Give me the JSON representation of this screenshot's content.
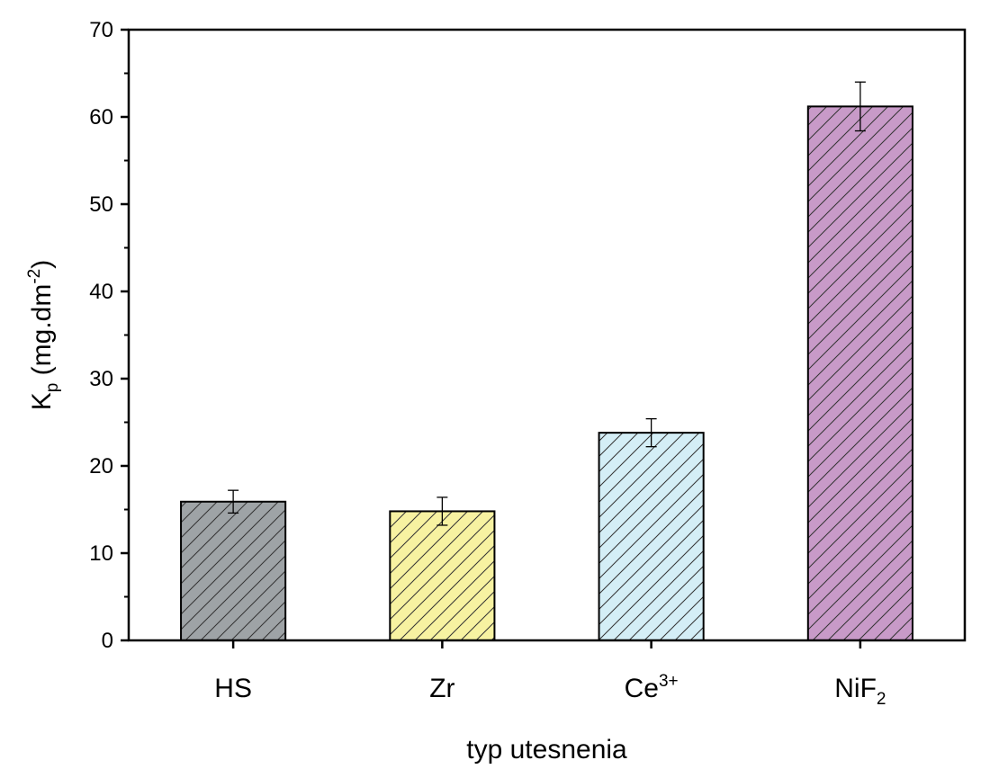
{
  "chart_data": {
    "type": "bar",
    "categories": [
      {
        "base": "HS",
        "sup": "",
        "sub": ""
      },
      {
        "base": "Zr",
        "sup": "",
        "sub": ""
      },
      {
        "base": "Ce",
        "sup": "3+",
        "sub": ""
      },
      {
        "base": "NiF",
        "sup": "",
        "sub": "2"
      }
    ],
    "values": [
      15.9,
      14.8,
      23.8,
      61.2
    ],
    "errors": [
      1.3,
      1.6,
      1.6,
      2.8
    ],
    "colors": [
      "#9ea3a6",
      "#f7f2a1",
      "#d4eef6",
      "#c89ac8"
    ],
    "hatch": "diagonal",
    "xlabel": "typ utesnenia",
    "ylabel": {
      "base": "K",
      "sub": "p",
      "unit_open": " (mg.dm",
      "unit_sup": "-2",
      "unit_close": ")"
    },
    "ylim": [
      0,
      70
    ],
    "yticks": [
      0,
      10,
      20,
      30,
      40,
      50,
      60,
      70
    ],
    "grid": false,
    "legend": "none"
  }
}
